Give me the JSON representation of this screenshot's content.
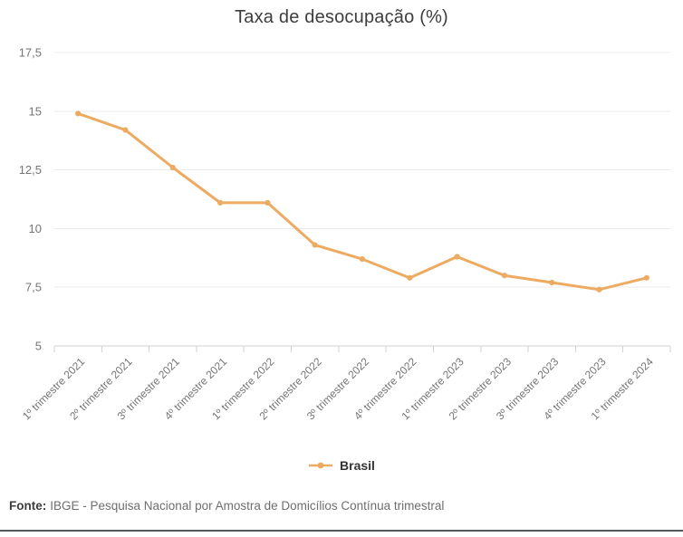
{
  "title": "Taxa de desocupação (%)",
  "legend": {
    "label": "Brasil"
  },
  "footer": {
    "source_label": "Fonte:",
    "source_text": "IBGE - Pesquisa Nacional por Amostra de Domicílios Contínua trimestral"
  },
  "colors": {
    "line": "#ecab61",
    "title_text": "#3d3d3d",
    "axis_text": "#757575",
    "grid": "#ebebeb",
    "axis_line": "#d2d2d2",
    "legend_text": "#333333",
    "footer_text": "#6e6e6e",
    "bottom_rule": "#54585b"
  },
  "chart_data": {
    "type": "line",
    "title": "Taxa de desocupação (%)",
    "categories": [
      "1º trimestre 2021",
      "2º trimestre 2021",
      "3º trimestre 2021",
      "4º trimestre 2021",
      "1º trimestre 2022",
      "2º trimestre 2022",
      "3º trimestre 2022",
      "4º trimestre 2022",
      "1º trimestre 2023",
      "2º trimestre 2023",
      "3º trimestre 2023",
      "4º trimestre 2023",
      "1º trimestre 2024"
    ],
    "series": [
      {
        "name": "Brasil",
        "values": [
          14.9,
          14.2,
          12.6,
          11.1,
          11.1,
          9.3,
          8.7,
          7.9,
          8.8,
          8.0,
          7.7,
          7.4,
          7.9
        ]
      }
    ],
    "xlabel": "",
    "ylabel": "",
    "ylim": [
      5,
      17.5
    ],
    "yticks": [
      17.5,
      15,
      12.5,
      10,
      7.5,
      5
    ],
    "ytick_labels": [
      "17,5",
      "15",
      "12,5",
      "10",
      "7,5",
      "5"
    ],
    "grid": true,
    "legend_position": "bottom"
  }
}
